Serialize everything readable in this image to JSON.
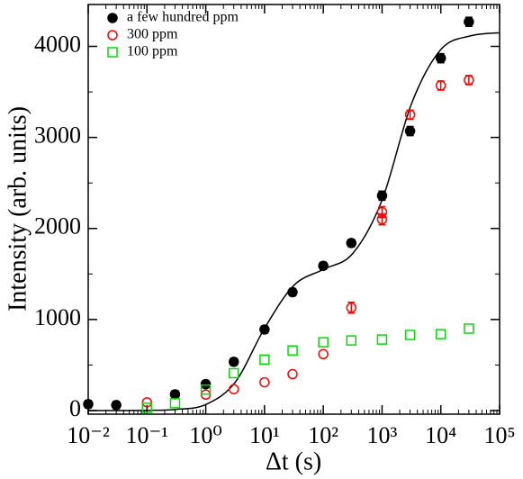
{
  "chart_data": {
    "type": "scatter",
    "x_label": "Δt (s)",
    "y_label": "Intensity (arb. units)",
    "xscale": "log",
    "xlim": [
      0.01,
      100000
    ],
    "xticks": [
      {
        "value": 0.01,
        "label": "10⁻²"
      },
      {
        "value": 0.1,
        "label": "10⁻¹"
      },
      {
        "value": 1,
        "label": "10⁰"
      },
      {
        "value": 10,
        "label": "10¹"
      },
      {
        "value": 100,
        "label": "10²"
      },
      {
        "value": 1000,
        "label": "10³"
      },
      {
        "value": 10000,
        "label": "10⁴"
      },
      {
        "value": 100000,
        "label": "10⁵"
      }
    ],
    "ylim": [
      -40,
      4460
    ],
    "yticks": [
      0,
      1000,
      2000,
      3000,
      4000
    ],
    "yminorticks": [
      500,
      1500,
      2500,
      3500
    ],
    "legend": "top-left",
    "series": [
      {
        "name": "a few hundred ppm",
        "color": "#000000",
        "marker": "filled-circle",
        "x": [
          0.01,
          0.03,
          0.3,
          1,
          3,
          10,
          30,
          100,
          300,
          1000,
          3000,
          10000,
          30000
        ],
        "values": [
          70,
          60,
          178,
          290,
          535,
          890,
          1300,
          1590,
          1840,
          2360,
          3070,
          3870,
          4270
        ],
        "errors": [
          40,
          40,
          40,
          40,
          40,
          40,
          40,
          40,
          40,
          50,
          50,
          50,
          50
        ]
      },
      {
        "name": "300 ppm",
        "color": "#ff0000",
        "marker": "open-circle",
        "x": [
          0.1,
          1,
          3,
          10,
          30,
          100,
          300,
          1000,
          1000,
          3000,
          10000,
          30000
        ],
        "values": [
          90,
          175,
          235,
          310,
          400,
          620,
          1130,
          2100,
          2180,
          3250,
          3570,
          3630
        ],
        "errors": [
          null,
          null,
          null,
          null,
          null,
          null,
          60,
          60,
          60,
          50,
          50,
          50
        ]
      },
      {
        "name": "100 ppm",
        "color": "#00dd00",
        "marker": "open-square",
        "x": [
          0.1,
          0.3,
          1,
          3,
          10,
          30,
          100,
          300,
          1000,
          3000,
          10000,
          30000
        ],
        "values": [
          30,
          80,
          230,
          410,
          560,
          660,
          750,
          770,
          780,
          830,
          840,
          900
        ]
      }
    ],
    "fit_line": {
      "color": "#000000",
      "x": [
        0.01,
        0.0316,
        0.1,
        0.316,
        1,
        3.16,
        10,
        31.6,
        100,
        316,
        1000,
        3162,
        10000,
        31623,
        100000
      ],
      "values": [
        0,
        0,
        2,
        12,
        66,
        309,
        903,
        1375,
        1550,
        1724,
        2311,
        3368,
        3965,
        4115,
        4150
      ]
    }
  }
}
